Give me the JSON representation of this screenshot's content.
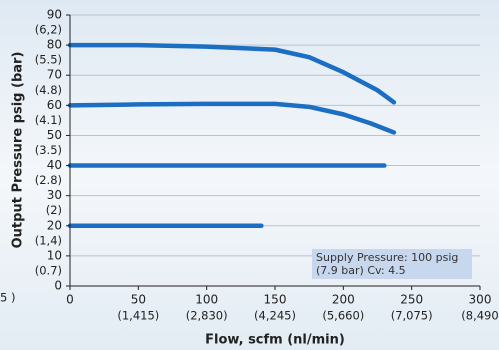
{
  "chart_data": {
    "type": "line",
    "xlabel": "Flow, scfm (nl/min)",
    "ylabel": "Output Pressure psig (bar)",
    "color": "#1c6ec2",
    "series": [
      {
        "x": [
          0,
          50,
          100,
          150,
          175,
          200,
          225,
          237
        ],
        "values": [
          80,
          80,
          79.5,
          78.5,
          76,
          71,
          65,
          61
        ]
      },
      {
        "x": [
          0,
          50,
          100,
          150,
          175,
          200,
          220,
          237
        ],
        "values": [
          60,
          60.3,
          60.5,
          60.5,
          59.5,
          57,
          54,
          51
        ]
      },
      {
        "x": [
          0,
          230
        ],
        "values": [
          40,
          40
        ]
      },
      {
        "x": [
          0,
          140
        ],
        "values": [
          20,
          20
        ]
      }
    ],
    "xlim": [
      0,
      300
    ],
    "xticks": [
      0,
      50,
      100,
      150,
      200,
      250,
      300
    ],
    "ylim": [
      0,
      90
    ],
    "yticks": [
      0,
      10,
      20,
      30,
      40,
      50,
      60,
      70,
      80,
      90
    ],
    "grid": true,
    "y_secondary_labels": [
      {
        "value": 85,
        "label": "(6,2)"
      },
      {
        "value": 75,
        "label": "(5.5)"
      },
      {
        "value": 65,
        "label": "(4.8)"
      },
      {
        "value": 55,
        "label": "(4.1)"
      },
      {
        "value": 45,
        "label": "(3.5)"
      },
      {
        "value": 35,
        "label": "(2.8)"
      },
      {
        "value": 25,
        "label": "(2)"
      },
      {
        "value": 15,
        "label": "(1,4)"
      },
      {
        "value": 5,
        "label": "(0.7)"
      }
    ],
    "x_secondary_labels": [
      {
        "value": 50,
        "label": "(1,415)"
      },
      {
        "value": 100,
        "label": "(2,830)"
      },
      {
        "value": 150,
        "label": "(4,245)"
      },
      {
        "value": 200,
        "label": "(5,660)"
      },
      {
        "value": 250,
        "label": "(7,075)"
      },
      {
        "value": 300,
        "label": "(8,490"
      }
    ],
    "edge_fragment": "5 )",
    "annotation": [
      "Supply Pressure: 100 psig",
      "(7.9 bar) Cv: 4.5"
    ]
  }
}
